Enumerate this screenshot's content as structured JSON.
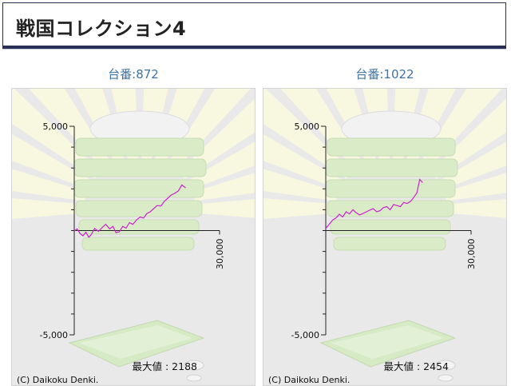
{
  "page": {
    "title": "戦国コレクション4"
  },
  "copyright": "(C) Daikoku Denki.",
  "max_label": "最大値",
  "chart_data": [
    {
      "type": "line",
      "machine_label": "台番:872",
      "machine_prefix": "台番",
      "machine_number": "872",
      "max_value": "2188",
      "xlim": [
        0,
        30000
      ],
      "ylim": [
        -5000,
        5000
      ],
      "y_tick_labels": [
        "5,000",
        "-5,000"
      ],
      "x_tick_labels": [
        "30,000"
      ],
      "line_color": "#cc22cc",
      "x": [
        0,
        600,
        1200,
        1800,
        2400,
        3000,
        3500,
        4200,
        5000,
        5800,
        6500,
        7300,
        8000,
        8600,
        9300,
        10000,
        10700,
        11400,
        12100,
        12900,
        13600,
        14300,
        15000,
        15700,
        16400,
        17100,
        17900,
        18600,
        19300,
        20000,
        20700,
        21500,
        22200,
        23000
      ],
      "y": [
        -20,
        80,
        -150,
        -250,
        -80,
        -320,
        -200,
        100,
        -40,
        150,
        300,
        80,
        200,
        -100,
        -60,
        200,
        120,
        380,
        300,
        520,
        650,
        600,
        820,
        900,
        1050,
        1200,
        1180,
        1400,
        1550,
        1700,
        1780,
        1900,
        2188,
        2050
      ]
    },
    {
      "type": "line",
      "machine_label": "台番:1022",
      "machine_prefix": "台番",
      "machine_number": "1022",
      "max_value": "2454",
      "xlim": [
        0,
        30000
      ],
      "ylim": [
        -5000,
        5000
      ],
      "y_tick_labels": [
        "5,000",
        "-5,000"
      ],
      "x_tick_labels": [
        "30,000"
      ],
      "line_color": "#cc22cc",
      "x": [
        0,
        700,
        1400,
        2100,
        2800,
        3500,
        4200,
        4900,
        5600,
        6300,
        7000,
        7700,
        8400,
        9100,
        9800,
        10500,
        11200,
        11900,
        12600,
        13300,
        14000,
        14700,
        15400,
        16100,
        16800,
        17500,
        18200,
        18800,
        19400,
        20000
      ],
      "y": [
        100,
        300,
        500,
        600,
        780,
        650,
        900,
        800,
        1000,
        850,
        750,
        820,
        900,
        980,
        1050,
        900,
        950,
        1100,
        1150,
        1000,
        1250,
        1200,
        1150,
        1350,
        1300,
        1400,
        1600,
        1800,
        2454,
        2300
      ]
    }
  ]
}
